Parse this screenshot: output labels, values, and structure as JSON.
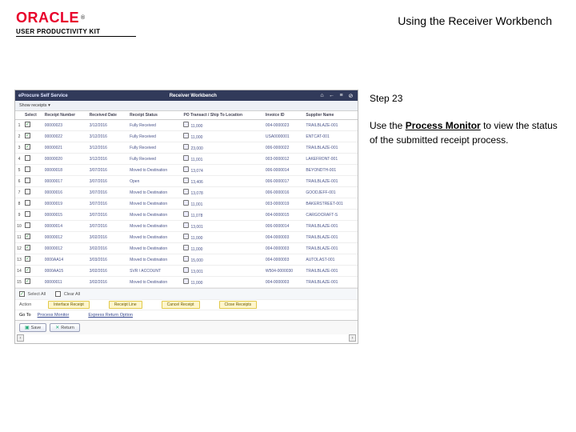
{
  "header": {
    "logo_text": "ORACLE",
    "tm": "®",
    "upk": "USER PRODUCTIVITY KIT",
    "doc_title": "Using the Receiver Workbench"
  },
  "side": {
    "step": "Step 23",
    "instr_a": "Use the ",
    "instr_b": "Process Monitor",
    "instr_c": " to view the status of the submitted receipt process."
  },
  "app": {
    "module": "eProcure Self Service",
    "title": "Receiver Workbench",
    "icons": {
      "home": "⌂",
      "back": "←",
      "menu": "≡",
      "alert": "⊘"
    },
    "filter_line": "Show receipts   ▾",
    "columns": [
      "",
      "Select",
      "Receipt Number",
      "Received Date",
      "Receipt Status",
      "PO Transact / Ship To Location",
      "Invoice ID",
      "Supplier Name"
    ],
    "rows": [
      {
        "n": "1",
        "chk": true,
        "recno": "00000023",
        "date": "3/12/2016",
        "status": "Fully Received",
        "line": "11,000",
        "inv": "004-0000023",
        "supp": "TRAILBLAZE-001"
      },
      {
        "n": "2",
        "chk": true,
        "recno": "00000022",
        "date": "3/12/2016",
        "status": "Fully Received",
        "line": "11,000",
        "inv": "USA0000001",
        "supp": "ENTCAT-001"
      },
      {
        "n": "3",
        "chk": true,
        "recno": "00000021",
        "date": "3/12/2016",
        "status": "Fully Received",
        "line": "23,000",
        "inv": "006-0000022",
        "supp": "TRAILBLAZE-001"
      },
      {
        "n": "4",
        "chk": false,
        "recno": "00000020",
        "date": "3/12/2016",
        "status": "Fully Received",
        "line": "11,001",
        "inv": "003-0000012",
        "supp": "LAKEFRONT-001"
      },
      {
        "n": "5",
        "chk": false,
        "recno": "00000018",
        "date": "3/07/2016",
        "status": "Moved to Destination",
        "line": "13,074",
        "inv": "006-0000014",
        "supp": "BEYONDTH-001"
      },
      {
        "n": "6",
        "chk": false,
        "recno": "00000017",
        "date": "3/07/2016",
        "status": "Open",
        "line": "13,406",
        "inv": "006-0000017",
        "supp": "TRAILBLAZE-001"
      },
      {
        "n": "7",
        "chk": false,
        "recno": "00000016",
        "date": "3/07/2016",
        "status": "Moved to Destination",
        "line": "13,078",
        "inv": "006-0000016",
        "supp": "GOODJEFF-001"
      },
      {
        "n": "8",
        "chk": false,
        "recno": "00000019",
        "date": "3/07/2016",
        "status": "Moved to Destination",
        "line": "11,001",
        "inv": "003-0000019",
        "supp": "BAKERSTREET-001"
      },
      {
        "n": "9",
        "chk": false,
        "recno": "00000015",
        "date": "3/07/2016",
        "status": "Moved to Destination",
        "line": "11,078",
        "inv": "004-0000015",
        "supp": "CARGOCRAFT-S"
      },
      {
        "n": "10",
        "chk": false,
        "recno": "00000014",
        "date": "3/07/2016",
        "status": "Moved to Destination",
        "line": "13,001",
        "inv": "006-0000014",
        "supp": "TRAILBLAZE-001"
      },
      {
        "n": "11",
        "chk": true,
        "recno": "00000012",
        "date": "3/02/2016",
        "status": "Moved to Destination",
        "line": "11,000",
        "inv": "004-0000003",
        "supp": "TRAILBLAZE-001"
      },
      {
        "n": "12",
        "chk": true,
        "recno": "00000012",
        "date": "3/02/2016",
        "status": "Moved to Destination",
        "line": "11,000",
        "inv": "004-0000003",
        "supp": "TRAILBLAZE-001"
      },
      {
        "n": "13",
        "chk": true,
        "recno": "0000AA14",
        "date": "3/03/2016",
        "status": "Moved to Destination",
        "line": "15,000",
        "inv": "004-0000003",
        "supp": "AUTOLAST-001"
      },
      {
        "n": "14",
        "chk": true,
        "recno": "0000AA15",
        "date": "3/02/2016",
        "status": "SVR / ACCOUNT",
        "line": "13,001",
        "inv": "W504-0000030",
        "supp": "TRAILBLAZE-001"
      },
      {
        "n": "15",
        "chk": true,
        "recno": "00000011",
        "date": "3/02/2016",
        "status": "Moved to Destination",
        "line": "11,000",
        "inv": "004-0000003",
        "supp": "TRAILBLAZE-001"
      }
    ],
    "select_all": "Select All",
    "clear_all": "Clear All",
    "actions_label": "Action",
    "action_buttons": [
      "Interface Receipt",
      "Receipt Line",
      "Cancel Receipt",
      "Close Receipts"
    ],
    "goto_label": "Go To",
    "goto_links": [
      "Process Monitor",
      "Express Return Option"
    ],
    "save": "Save",
    "return": "Return"
  }
}
